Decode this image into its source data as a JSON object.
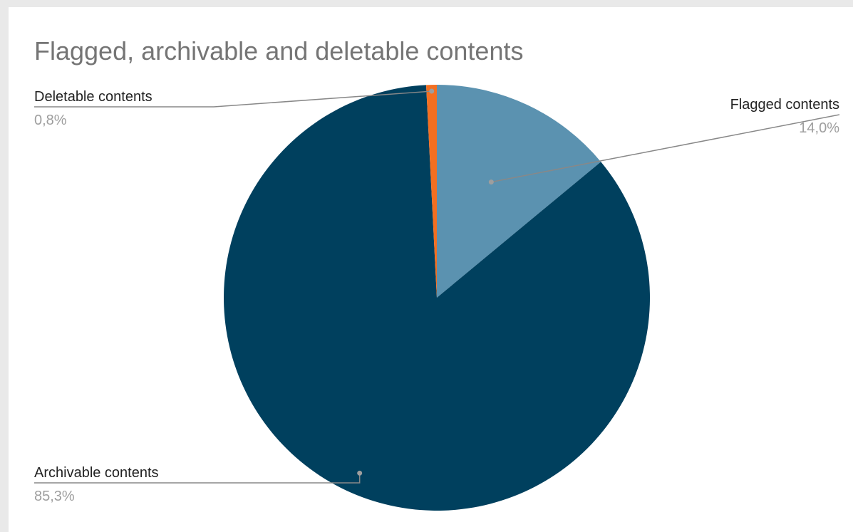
{
  "chart_data": {
    "type": "pie",
    "title": "Flagged, archivable and deletable contents",
    "slices": [
      {
        "name": "Flagged contents",
        "value": 14.0,
        "label": "14,0%",
        "color": "#5b92b0"
      },
      {
        "name": "Archivable contents",
        "value": 85.3,
        "label": "85,3%",
        "color": "#00405e"
      },
      {
        "name": "Deletable contents",
        "value": 0.8,
        "label": "0,8%",
        "color": "#f36f21"
      }
    ],
    "legend": "none (callout labels)"
  }
}
